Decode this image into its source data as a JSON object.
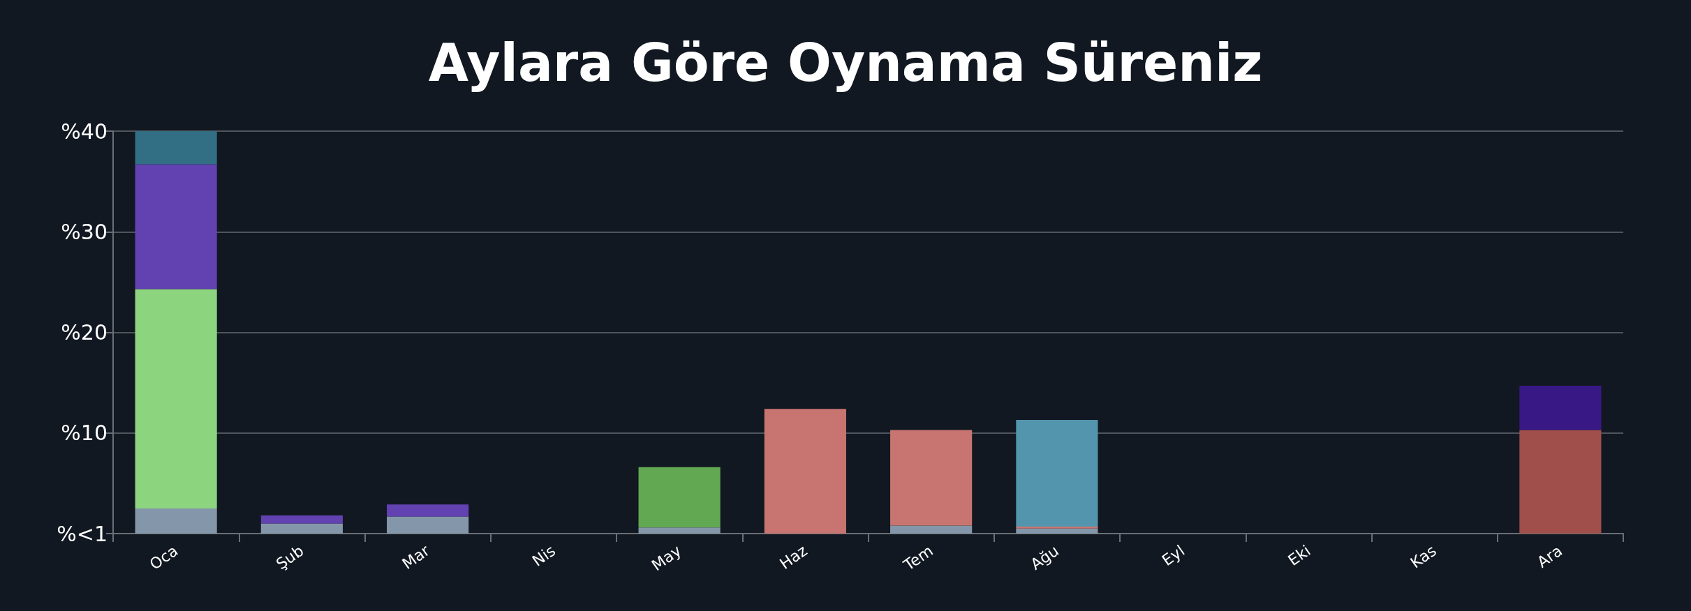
{
  "chart_data": {
    "type": "bar",
    "title": "Aylara Göre Oynama Süreniz",
    "stacked": true,
    "grid": "y",
    "categories": [
      "Oca",
      "Şub",
      "Mar",
      "Nis",
      "May",
      "Haz",
      "Tem",
      "Ağu",
      "Eyl",
      "Eki",
      "Kas",
      "Ara"
    ],
    "ylim": [
      0,
      40
    ],
    "yticks": [
      {
        "value": 0,
        "label": "%<1"
      },
      {
        "value": 10,
        "label": "%10"
      },
      {
        "value": 20,
        "label": "%20"
      },
      {
        "value": 30,
        "label": "%30"
      },
      {
        "value": 40,
        "label": "%40"
      }
    ],
    "series": [
      {
        "color": "#8497aa",
        "values": [
          2.5,
          1.0,
          1.7,
          null,
          0.6,
          null,
          0.8,
          0.5,
          null,
          null,
          null,
          null
        ]
      },
      {
        "color": "#8cd47e",
        "values": [
          21.8,
          null,
          null,
          null,
          null,
          null,
          null,
          null,
          null,
          null,
          null,
          null
        ]
      },
      {
        "color": "#62a853",
        "values": [
          null,
          null,
          null,
          null,
          6.0,
          null,
          null,
          null,
          null,
          null,
          null,
          null
        ]
      },
      {
        "color": "#c87571",
        "values": [
          null,
          null,
          null,
          null,
          null,
          12.4,
          9.5,
          0.2,
          null,
          null,
          null,
          null
        ]
      },
      {
        "color": "#a04f4a",
        "values": [
          null,
          null,
          null,
          null,
          null,
          null,
          null,
          null,
          null,
          null,
          null,
          10.3
        ]
      },
      {
        "color": "#5495ae",
        "values": [
          null,
          null,
          null,
          null,
          null,
          null,
          null,
          10.6,
          null,
          null,
          null,
          null
        ]
      },
      {
        "color": "#6241b0",
        "values": [
          12.4,
          0.8,
          1.2,
          null,
          null,
          null,
          null,
          null,
          null,
          null,
          null,
          null
        ]
      },
      {
        "color": "#381885",
        "values": [
          null,
          null,
          null,
          null,
          null,
          null,
          null,
          null,
          null,
          null,
          null,
          4.4
        ]
      },
      {
        "color": "#336f84",
        "values": [
          3.3,
          null,
          null,
          null,
          null,
          null,
          null,
          null,
          null,
          null,
          null,
          null
        ]
      }
    ]
  }
}
